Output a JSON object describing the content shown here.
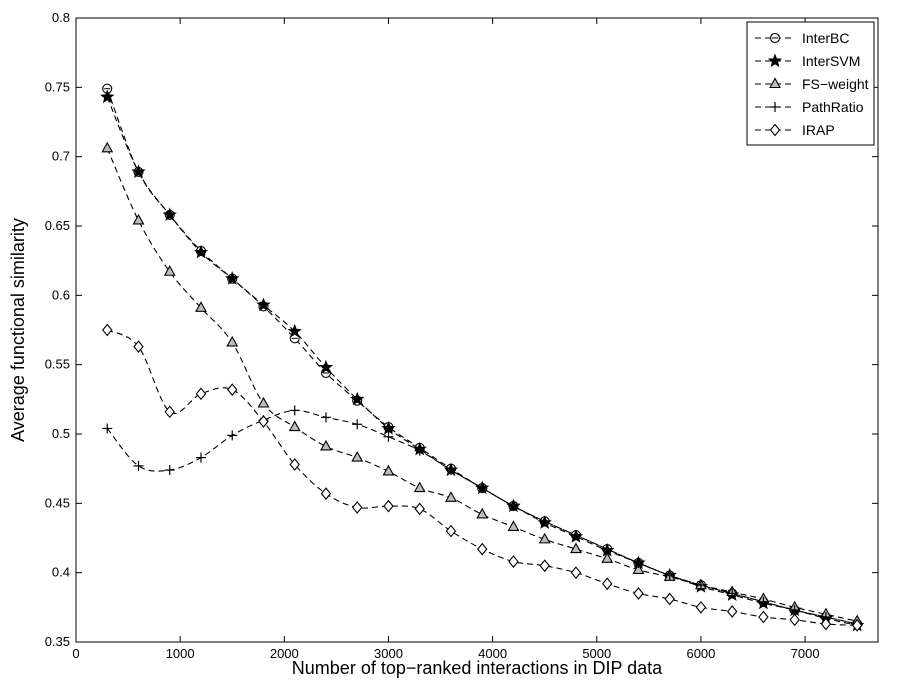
{
  "chart_data": {
    "type": "line",
    "xlabel": "Number of top−ranked interactions in DIP data",
    "ylabel": "Average functional similarity",
    "xlim": [
      0,
      7700
    ],
    "ylim": [
      0.35,
      0.8
    ],
    "xticks": [
      0,
      1000,
      2000,
      3000,
      4000,
      5000,
      6000,
      7000
    ],
    "yticks": [
      0.35,
      0.4,
      0.45,
      0.5,
      0.55,
      0.6,
      0.65,
      0.7,
      0.75,
      0.8
    ],
    "grid": false,
    "legend_position": "top-right",
    "x": [
      300,
      600,
      900,
      1200,
      1500,
      1800,
      2100,
      2400,
      2700,
      3000,
      3300,
      3600,
      3900,
      4200,
      4500,
      4800,
      5100,
      5400,
      5700,
      6000,
      6300,
      6600,
      6900,
      7200,
      7500
    ],
    "series": [
      {
        "name": "InterBC",
        "marker": "circle",
        "values": [
          0.749,
          0.689,
          0.658,
          0.632,
          0.612,
          0.592,
          0.569,
          0.544,
          0.524,
          0.505,
          0.49,
          0.475,
          0.461,
          0.448,
          0.437,
          0.427,
          0.417,
          0.407,
          0.398,
          0.391,
          0.385,
          0.379,
          0.373,
          0.368,
          0.363
        ]
      },
      {
        "name": "InterSVM",
        "marker": "star",
        "values": [
          0.743,
          0.689,
          0.658,
          0.631,
          0.612,
          0.593,
          0.574,
          0.548,
          0.525,
          0.504,
          0.489,
          0.474,
          0.461,
          0.448,
          0.436,
          0.426,
          0.416,
          0.407,
          0.398,
          0.39,
          0.384,
          0.378,
          0.373,
          0.367,
          0.362
        ]
      },
      {
        "name": "FS−weight",
        "marker": "triangle",
        "values": [
          0.706,
          0.654,
          0.617,
          0.591,
          0.566,
          0.522,
          0.505,
          0.491,
          0.483,
          0.473,
          0.461,
          0.454,
          0.442,
          0.433,
          0.424,
          0.417,
          0.41,
          0.402,
          0.397,
          0.391,
          0.386,
          0.381,
          0.375,
          0.37,
          0.365
        ]
      },
      {
        "name": "PathRatio",
        "marker": "plus",
        "values": [
          0.504,
          0.477,
          0.474,
          0.483,
          0.499,
          0.51,
          0.517,
          0.512,
          0.507,
          0.498,
          0.488,
          0.474,
          0.461,
          0.448,
          0.437,
          0.427,
          0.417,
          0.407,
          0.398,
          0.391,
          0.385,
          0.379,
          0.373,
          0.368,
          0.363
        ]
      },
      {
        "name": "IRAP",
        "marker": "diamond",
        "values": [
          0.575,
          0.563,
          0.516,
          0.529,
          0.532,
          0.509,
          0.478,
          0.457,
          0.447,
          0.448,
          0.446,
          0.43,
          0.417,
          0.408,
          0.405,
          0.4,
          0.392,
          0.385,
          0.381,
          0.375,
          0.372,
          0.368,
          0.366,
          0.363,
          0.362
        ]
      }
    ]
  }
}
